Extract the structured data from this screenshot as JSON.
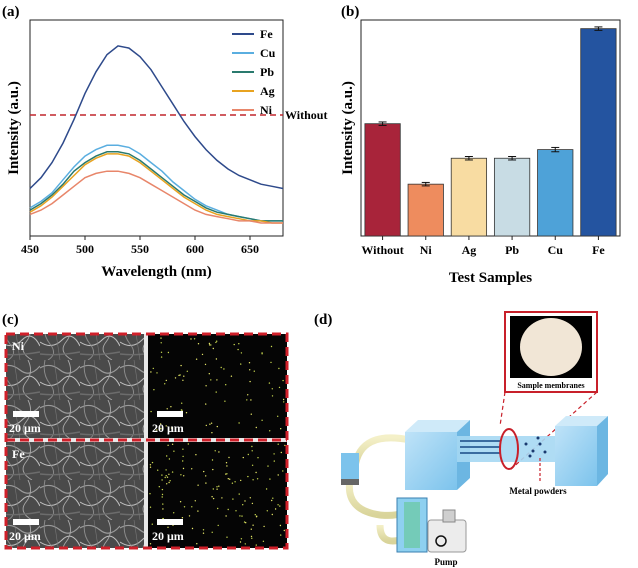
{
  "panels": {
    "a": {
      "label": "(a)"
    },
    "b": {
      "label": "(b)"
    },
    "c": {
      "label": "(c)"
    },
    "d": {
      "label": "(d)"
    }
  },
  "chart_data": [
    {
      "id": "a",
      "type": "line",
      "xlabel": "Wavelength (nm)",
      "ylabel": "Intensity (a.u.)",
      "xlim": [
        450,
        680
      ],
      "ylim": [
        0,
        1.0
      ],
      "xticks": [
        "450",
        "500",
        "550",
        "600",
        "650"
      ],
      "reference_line": {
        "label": "Without",
        "value": 0.56,
        "color": "#c0272d"
      },
      "series": [
        {
          "name": "Fe",
          "color": "#2e4a8b",
          "x": [
            450,
            460,
            470,
            480,
            490,
            500,
            510,
            520,
            530,
            540,
            550,
            560,
            570,
            580,
            590,
            600,
            610,
            620,
            630,
            640,
            650,
            660,
            670,
            680
          ],
          "y": [
            0.22,
            0.27,
            0.34,
            0.43,
            0.54,
            0.66,
            0.76,
            0.84,
            0.88,
            0.87,
            0.83,
            0.77,
            0.69,
            0.61,
            0.53,
            0.46,
            0.4,
            0.35,
            0.31,
            0.28,
            0.26,
            0.24,
            0.23,
            0.22
          ]
        },
        {
          "name": "Cu",
          "color": "#5aaee0",
          "x": [
            450,
            460,
            470,
            480,
            490,
            500,
            510,
            520,
            530,
            540,
            550,
            560,
            570,
            580,
            590,
            600,
            610,
            620,
            630,
            640,
            650,
            660,
            670,
            680
          ],
          "y": [
            0.13,
            0.16,
            0.2,
            0.26,
            0.32,
            0.37,
            0.4,
            0.42,
            0.42,
            0.41,
            0.38,
            0.34,
            0.3,
            0.25,
            0.21,
            0.17,
            0.14,
            0.12,
            0.1,
            0.09,
            0.08,
            0.07,
            0.07,
            0.07
          ]
        },
        {
          "name": "Pb",
          "color": "#2a7a6e",
          "x": [
            450,
            460,
            470,
            480,
            490,
            500,
            510,
            520,
            530,
            540,
            550,
            560,
            570,
            580,
            590,
            600,
            610,
            620,
            630,
            640,
            650,
            660,
            670,
            680
          ],
          "y": [
            0.12,
            0.15,
            0.19,
            0.24,
            0.3,
            0.34,
            0.37,
            0.39,
            0.39,
            0.38,
            0.35,
            0.31,
            0.27,
            0.23,
            0.19,
            0.16,
            0.13,
            0.11,
            0.1,
            0.09,
            0.08,
            0.07,
            0.07,
            0.07
          ]
        },
        {
          "name": "Ag",
          "color": "#e8a320",
          "x": [
            450,
            460,
            470,
            480,
            490,
            500,
            510,
            520,
            530,
            540,
            550,
            560,
            570,
            580,
            590,
            600,
            610,
            620,
            630,
            640,
            650,
            660,
            670,
            680
          ],
          "y": [
            0.11,
            0.14,
            0.18,
            0.23,
            0.28,
            0.33,
            0.36,
            0.38,
            0.38,
            0.37,
            0.34,
            0.3,
            0.26,
            0.22,
            0.18,
            0.15,
            0.12,
            0.1,
            0.09,
            0.08,
            0.07,
            0.07,
            0.06,
            0.06
          ]
        },
        {
          "name": "Ni",
          "color": "#e8866a",
          "x": [
            450,
            460,
            470,
            480,
            490,
            500,
            510,
            520,
            530,
            540,
            550,
            560,
            570,
            580,
            590,
            600,
            610,
            620,
            630,
            640,
            650,
            660,
            670,
            680
          ],
          "y": [
            0.1,
            0.12,
            0.15,
            0.19,
            0.23,
            0.27,
            0.29,
            0.3,
            0.3,
            0.29,
            0.27,
            0.24,
            0.21,
            0.18,
            0.15,
            0.12,
            0.1,
            0.09,
            0.08,
            0.07,
            0.07,
            0.06,
            0.06,
            0.06
          ]
        }
      ]
    },
    {
      "id": "b",
      "type": "bar",
      "xlabel": "Test Samples",
      "ylabel": "Intensity (a.u.)",
      "ylim": [
        0,
        1.0
      ],
      "categories": [
        "Without",
        "Ni",
        "Ag",
        "Pb",
        "Cu",
        "Fe"
      ],
      "values": [
        0.52,
        0.24,
        0.36,
        0.36,
        0.4,
        0.96
      ],
      "errors": [
        0.008,
        0.008,
        0.008,
        0.008,
        0.01,
        0.008
      ],
      "colors": [
        "#a8243a",
        "#ee8c5e",
        "#f8dca2",
        "#c8dce4",
        "#4ea2d8",
        "#2454a0"
      ]
    }
  ],
  "panel_c": {
    "rows": [
      {
        "label": "Ni",
        "scale": "20 μm",
        "scale_right": "20 μm"
      },
      {
        "label": "Fe",
        "scale": "20 μm",
        "scale_right": "20 μm"
      }
    ]
  },
  "panel_d": {
    "inset_label": "Sample membranes",
    "metal_label": "Metal powders",
    "pump_label": "Pump"
  }
}
